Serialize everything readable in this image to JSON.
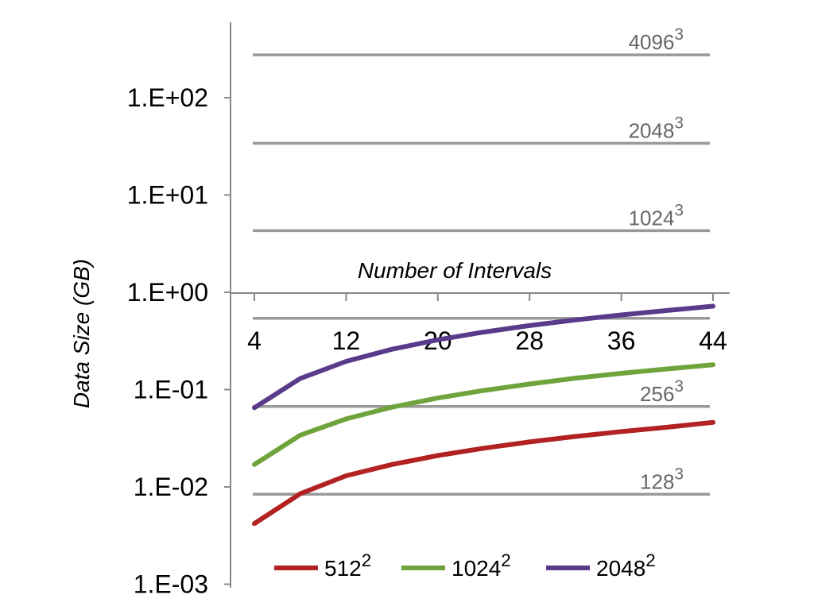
{
  "chart_data": {
    "type": "line",
    "xlabel": "Number of Intervals",
    "ylabel": "Data Size (GB)",
    "yscale": "log",
    "ylim": [
      0.001,
      1000
    ],
    "xlim": [
      4,
      44
    ],
    "x_ticks": [
      "4",
      "12",
      "20",
      "28",
      "36",
      "44"
    ],
    "y_ticks": [
      "1.E+02",
      "1.E+01",
      "1.E+00",
      "1.E-01",
      "1.E-02",
      "1.E-03"
    ],
    "x": [
      4,
      8,
      12,
      16,
      20,
      24,
      28,
      32,
      36,
      40,
      44
    ],
    "series": [
      {
        "name": "512",
        "exp": "2",
        "color": "#b22222",
        "values": [
          0.0042,
          0.0085,
          0.013,
          0.017,
          0.021,
          0.025,
          0.029,
          0.033,
          0.037,
          0.041,
          0.046
        ]
      },
      {
        "name": "1024",
        "exp": "2",
        "color": "#6fa33b",
        "values": [
          0.017,
          0.034,
          0.05,
          0.066,
          0.082,
          0.098,
          0.114,
          0.131,
          0.147,
          0.163,
          0.18
        ]
      },
      {
        "name": "2048",
        "exp": "2",
        "color": "#5a3a8a",
        "values": [
          0.065,
          0.13,
          0.195,
          0.26,
          0.325,
          0.39,
          0.455,
          0.52,
          0.585,
          0.65,
          0.72
        ]
      }
    ],
    "reference_lines": [
      {
        "label": "4096",
        "exp": "3",
        "value": 275
      },
      {
        "label": "2048",
        "exp": "3",
        "value": 34
      },
      {
        "label": "1024",
        "exp": "3",
        "value": 4.3
      },
      {
        "label": "",
        "exp": "",
        "value": 0.54
      },
      {
        "label": "256",
        "exp": "3",
        "value": 0.067
      },
      {
        "label": "128",
        "exp": "3",
        "value": 0.0084
      }
    ],
    "colors": {
      "reference": "#999999",
      "axis": "#888888"
    },
    "legend": "bottom"
  }
}
